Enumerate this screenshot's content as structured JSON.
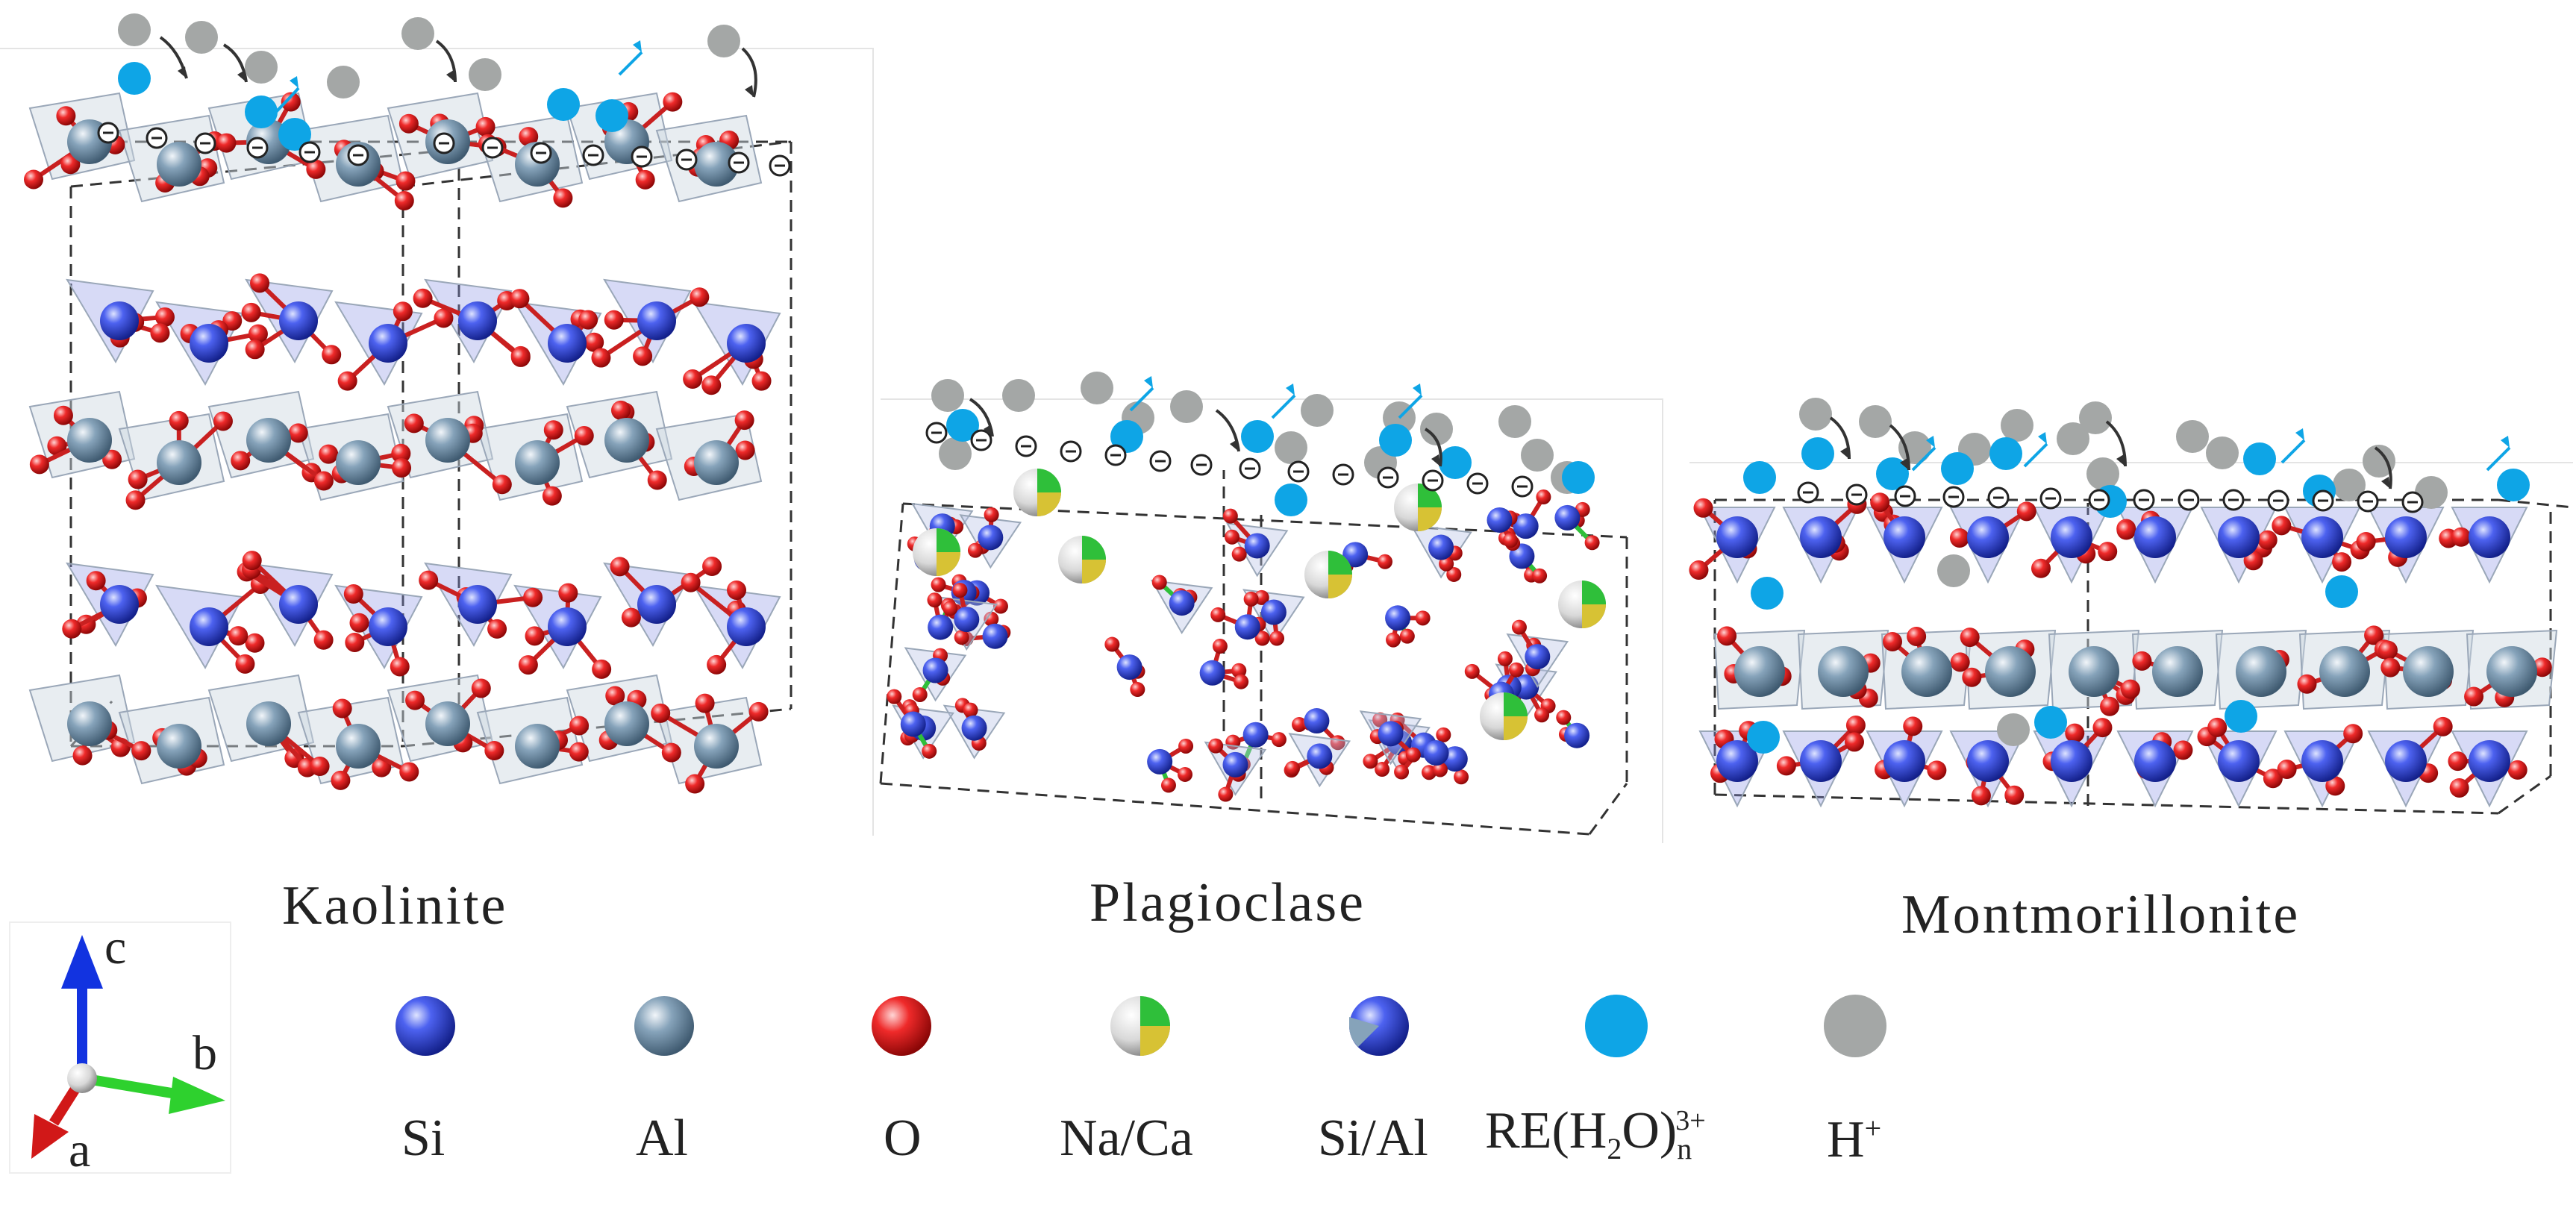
{
  "panels": [
    {
      "title": "Kaolinite"
    },
    {
      "title": "Plagioclase"
    },
    {
      "title": "Montmorillonite"
    }
  ],
  "axes": {
    "c": "c",
    "b": "b",
    "a": "a"
  },
  "legend": [
    {
      "key": "si",
      "label": "Si",
      "color": "#2c3fd6"
    },
    {
      "key": "al",
      "label": "Al",
      "color": "#7f9bb3"
    },
    {
      "key": "o",
      "label": "O",
      "color": "#e0191b"
    },
    {
      "key": "naca",
      "label": "Na/Ca",
      "color": "#2fbf3a"
    },
    {
      "key": "sial",
      "label": "Si/Al",
      "color": "#1a2fb8"
    },
    {
      "key": "re",
      "label_main": "RE(H",
      "label_sub1": "2",
      "label_mid": "O)",
      "label_sub2": "n",
      "label_sup": "3+",
      "color": "#0ea5e6"
    },
    {
      "key": "h",
      "label_main": "H",
      "label_sup": "+",
      "color": "#a4a7a6"
    }
  ]
}
